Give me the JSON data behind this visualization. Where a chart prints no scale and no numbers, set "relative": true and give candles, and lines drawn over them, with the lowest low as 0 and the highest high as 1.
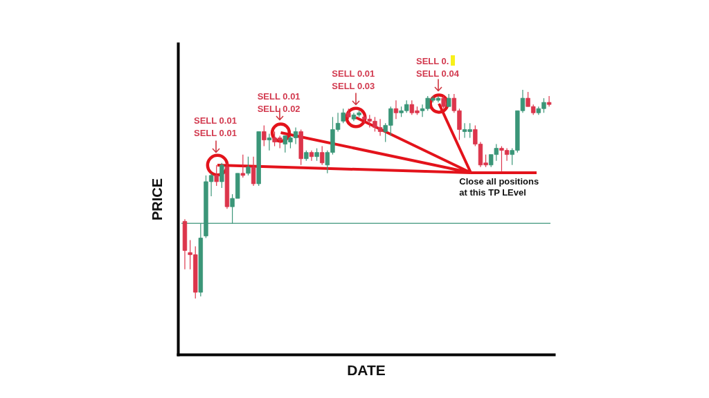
{
  "chart_data": {
    "type": "candlestick",
    "xlabel": "DATE",
    "ylabel": "PRICE",
    "relative": true,
    "tick_labels": false,
    "categories": [
      null,
      null,
      null,
      null,
      null,
      null,
      null,
      null,
      null,
      null,
      null,
      null,
      null,
      null,
      null,
      null,
      null,
      null,
      null,
      null,
      null,
      null,
      null,
      null,
      null,
      null,
      null,
      null,
      null,
      null,
      null,
      null,
      null,
      null,
      null,
      null,
      null,
      null,
      null,
      null,
      null,
      null,
      null,
      null,
      null,
      null,
      null,
      null,
      null,
      null,
      null,
      null,
      null,
      null,
      null,
      null,
      null,
      null,
      null,
      null,
      null,
      null,
      null,
      null,
      null,
      null,
      null,
      null,
      null,
      null
    ],
    "ohlc": [
      [
        0.37,
        0.38,
        0.14,
        0.23
      ],
      [
        0.22,
        0.28,
        0.14,
        0.21
      ],
      [
        0.21,
        0.25,
        0.0,
        0.03
      ],
      [
        0.03,
        0.36,
        0.01,
        0.29
      ],
      [
        0.3,
        0.59,
        0.29,
        0.56
      ],
      [
        0.56,
        0.6,
        0.49,
        0.59
      ],
      [
        0.59,
        0.64,
        0.54,
        0.56
      ],
      [
        0.56,
        0.65,
        0.53,
        0.64
      ],
      [
        0.63,
        0.65,
        0.43,
        0.44
      ],
      [
        0.44,
        0.5,
        0.36,
        0.48
      ],
      [
        0.48,
        0.6,
        0.48,
        0.6
      ],
      [
        0.6,
        0.69,
        0.58,
        0.59
      ],
      [
        0.6,
        0.68,
        0.59,
        0.63
      ],
      [
        0.63,
        0.68,
        0.54,
        0.55
      ],
      [
        0.55,
        0.8,
        0.54,
        0.8
      ],
      [
        0.8,
        0.83,
        0.73,
        0.76
      ],
      [
        0.76,
        0.79,
        0.71,
        0.77
      ],
      [
        0.77,
        0.8,
        0.73,
        0.75
      ],
      [
        0.77,
        0.78,
        0.72,
        0.76
      ],
      [
        0.74,
        0.78,
        0.7,
        0.78
      ],
      [
        0.75,
        0.78,
        0.72,
        0.77
      ],
      [
        0.77,
        0.82,
        0.74,
        0.8
      ],
      [
        0.8,
        0.81,
        0.64,
        0.67
      ],
      [
        0.67,
        0.71,
        0.66,
        0.7
      ],
      [
        0.7,
        0.71,
        0.66,
        0.68
      ],
      [
        0.68,
        0.72,
        0.66,
        0.7
      ],
      [
        0.7,
        0.73,
        0.64,
        0.65
      ],
      [
        0.64,
        0.71,
        0.6,
        0.7
      ],
      [
        0.7,
        0.87,
        0.69,
        0.81
      ],
      [
        0.81,
        0.89,
        0.8,
        0.84
      ],
      [
        0.85,
        0.91,
        0.84,
        0.89
      ],
      [
        0.89,
        0.91,
        0.86,
        0.87
      ],
      [
        0.86,
        0.89,
        0.85,
        0.88
      ],
      [
        0.88,
        0.9,
        0.87,
        0.89
      ],
      [
        0.87,
        0.88,
        0.84,
        0.86
      ],
      [
        0.86,
        0.88,
        0.82,
        0.85
      ],
      [
        0.85,
        0.87,
        0.8,
        0.82
      ],
      [
        0.82,
        0.86,
        0.78,
        0.8
      ],
      [
        0.8,
        0.84,
        0.75,
        0.83
      ],
      [
        0.83,
        0.92,
        0.78,
        0.91
      ],
      [
        0.91,
        0.95,
        0.86,
        0.89
      ],
      [
        0.89,
        0.92,
        0.87,
        0.9
      ],
      [
        0.9,
        0.95,
        0.89,
        0.93
      ],
      [
        0.93,
        0.95,
        0.88,
        0.89
      ],
      [
        0.9,
        0.92,
        0.88,
        0.89
      ],
      [
        0.9,
        0.93,
        0.87,
        0.91
      ],
      [
        0.91,
        0.97,
        0.9,
        0.96
      ],
      [
        0.95,
        0.97,
        0.94,
        0.96
      ],
      [
        0.95,
        0.97,
        0.94,
        0.96
      ],
      [
        0.96,
        0.97,
        0.91,
        0.92
      ],
      [
        0.92,
        0.98,
        0.92,
        0.96
      ],
      [
        0.96,
        0.98,
        0.89,
        0.9
      ],
      [
        0.9,
        0.91,
        0.76,
        0.81
      ],
      [
        0.8,
        0.84,
        0.77,
        0.81
      ],
      [
        0.8,
        0.84,
        0.77,
        0.81
      ],
      [
        0.81,
        0.83,
        0.73,
        0.74
      ],
      [
        0.74,
        0.75,
        0.63,
        0.64
      ],
      [
        0.65,
        0.69,
        0.63,
        0.64
      ],
      [
        0.64,
        0.69,
        0.63,
        0.69
      ],
      [
        0.69,
        0.74,
        0.66,
        0.72
      ],
      [
        0.72,
        0.73,
        0.61,
        0.71
      ],
      [
        0.71,
        0.72,
        0.66,
        0.69
      ],
      [
        0.69,
        0.72,
        0.64,
        0.71
      ],
      [
        0.71,
        0.9,
        0.7,
        0.9
      ],
      [
        0.9,
        1.0,
        0.89,
        0.96
      ],
      [
        0.96,
        0.99,
        0.92,
        0.92
      ],
      [
        0.92,
        0.93,
        0.88,
        0.89
      ],
      [
        0.89,
        0.92,
        0.88,
        0.91
      ],
      [
        0.91,
        0.96,
        0.89,
        0.94
      ],
      [
        0.94,
        0.97,
        0.92,
        0.93
      ]
    ],
    "colors": [
      "#dc354b",
      "#dc354b",
      "#dc354b",
      "#3b9678",
      "#3b9678",
      "#3b9678",
      "#dc354b",
      "#3b9678",
      "#dc354b",
      "#3b9678",
      "#3b9678",
      "#dc354b",
      "#3b9678",
      "#dc354b",
      "#3b9678",
      "#dc354b",
      "#3b9678",
      "#dc354b",
      "#dc354b",
      "#3b9678",
      "#3b9678",
      "#3b9678",
      "#dc354b",
      "#3b9678",
      "#dc354b",
      "#3b9678",
      "#dc354b",
      "#3b9678",
      "#3b9678",
      "#3b9678",
      "#3b9678",
      "#dc354b",
      "#3b9678",
      "#3b9678",
      "#dc354b",
      "#dc354b",
      "#dc354b",
      "#dc354b",
      "#3b9678",
      "#3b9678",
      "#dc354b",
      "#3b9678",
      "#3b9678",
      "#dc354b",
      "#dc354b",
      "#3b9678",
      "#3b9678",
      "#3b9678",
      "#3b9678",
      "#dc354b",
      "#3b9678",
      "#dc354b",
      "#dc354b",
      "#3b9678",
      "#3b9678",
      "#dc354b",
      "#dc354b",
      "#dc354b",
      "#3b9678",
      "#3b9678",
      "#dc354b",
      "#dc354b",
      "#3b9678",
      "#3b9678",
      "#3b9678",
      "#dc354b",
      "#dc354b",
      "#3b9678",
      "#3b9678",
      "#dc354b"
    ],
    "ref_lines": [
      {
        "axis": "y",
        "value": 0.36,
        "color": "#5aa58f"
      }
    ],
    "annotations": [
      "SELL 0.01\nSELL 0.01",
      "SELL 0.01\nSELL 0.02",
      "SELL 0.01\nSELL 0.03",
      "SELL 0.\nSELL 0.04",
      "Close all positions\nat this TP LEvel"
    ]
  }
}
